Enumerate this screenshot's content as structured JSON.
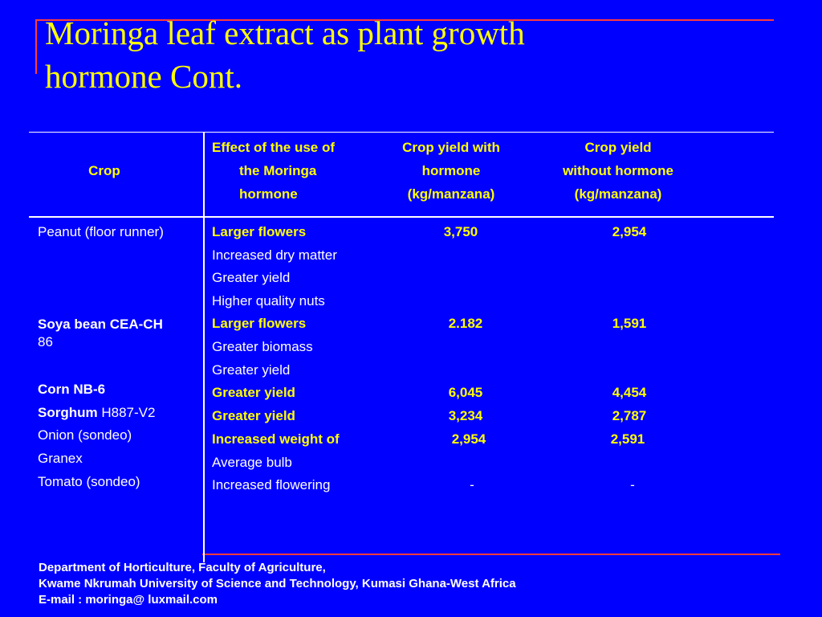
{
  "title": {
    "line1": "Moringa leaf  extract as plant growth",
    "line2": "hormone Cont."
  },
  "colors": {
    "background": "#0000ff",
    "accent_line": "#ff3b3b",
    "title": "#ffff00",
    "header": "#ffff00",
    "body_text": "#ffffff",
    "rule": "#ffffff"
  },
  "table": {
    "headers": {
      "crop": "Crop",
      "effect": [
        "Effect of the use of",
        "the Moringa",
        "hormone"
      ],
      "with": [
        "Crop yield with",
        "hormone",
        "(kg/manzana)"
      ],
      "without": [
        "Crop yield",
        "without hormone",
        "(kg/manzana)"
      ]
    },
    "crops": {
      "peanut": "Peanut (floor runner)",
      "soya_bold": "Soya bean CEA-CH",
      "soya_rest": "86",
      "corn": "Corn NB-6",
      "sorghum_bold": "Sorghum",
      "sorghum_rest": " H887-V2",
      "onion": "Onion (sondeo)",
      "granex": "Granex",
      "tomato": "Tomato (sondeo)"
    },
    "effects": [
      "Larger flowers",
      "Increased dry matter",
      "Greater yield",
      "Higher quality nuts",
      "Larger flowers",
      "Greater biomass",
      "Greater yield",
      "Greater yield",
      "Greater yield",
      "Increased weight of",
      "Average bulb",
      "Increased flowering"
    ],
    "yield_with": [
      "3,750",
      "2.182",
      "6,045",
      "3,234",
      "2,954",
      "-"
    ],
    "yield_without": [
      "2,954",
      "1,591",
      "4,454",
      "2,787",
      "2,591",
      "-"
    ]
  },
  "footer": {
    "line1": "Department of Horticulture, Faculty of Agriculture,",
    "line2": "Kwame Nkrumah  University of  Science and Technology, Kumasi Ghana-West Africa",
    "line3": "E-mail :  moringa@ luxmail.com"
  }
}
